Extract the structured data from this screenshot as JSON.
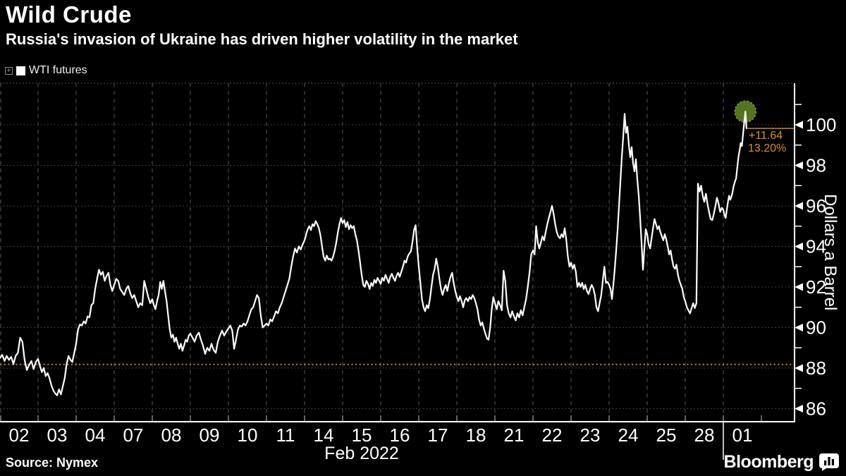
{
  "header": {
    "title": "Wild Crude",
    "subtitle": "Russia's invasion of Ukraine has driven higher volatility in the market"
  },
  "legend": {
    "expand_glyph": "+",
    "swatch_color": "#ffffff",
    "series_label": "WTI futures"
  },
  "footer": {
    "source": "Source: Nymex",
    "brand": "Bloomberg"
  },
  "colors": {
    "background": "#000000",
    "line": "#ffffff",
    "grid_dotted": "#4a4a4a",
    "grid_dashed": "#565656",
    "top_border": "#666666",
    "axis": "#ffffff",
    "tick": "#c9c9c9",
    "orange_reference": "#c28117",
    "orange_last_price": "#c9881c",
    "orange_text": "#d8911e",
    "marker_green": "#55741d",
    "marker_ring": "#7da32c"
  },
  "chart_data": {
    "type": "line",
    "title": "Wild Crude",
    "series_name": "WTI futures",
    "xlabel": "Feb 2022",
    "ylabel": "Dollars a Barrel",
    "x_tick_labels": [
      "02",
      "03",
      "04",
      "07",
      "08",
      "09",
      "10",
      "11",
      "14",
      "15",
      "16",
      "17",
      "18",
      "21",
      "22",
      "23",
      "24",
      "25",
      "28",
      "01"
    ],
    "y_ticks": [
      86,
      88,
      90,
      92,
      94,
      96,
      98,
      100
    ],
    "y_minor_ticks": [
      87,
      89,
      91,
      93,
      95,
      97,
      99,
      101
    ],
    "ylim": [
      85.35,
      102.05
    ],
    "grid": true,
    "legend_position": "top-left",
    "month_separator_after_label": "28",
    "last_day_fraction": 0.61,
    "reference_line": {
      "value": 88.18,
      "style": "dotted"
    },
    "last_point": {
      "value": 99.82,
      "change": "+11.64",
      "change_pct": "13.20%",
      "marker_value": 100.65
    },
    "days": [
      {
        "label": "02",
        "prices": [
          88.5,
          88.65,
          88.35,
          88.6,
          88.4,
          88.55,
          88.2,
          88.6,
          88.75,
          89.5,
          89.3,
          88.4,
          87.9,
          88.15,
          88.35,
          87.95,
          88.3
        ]
      },
      {
        "label": "03",
        "prices": [
          88.45,
          88.1,
          87.8,
          88.0,
          87.6,
          87.75,
          87.5,
          87.15,
          86.9,
          86.75,
          86.65,
          86.95,
          86.7,
          87.1,
          87.5,
          88.2,
          88.6,
          88.4,
          88.3,
          88.75
        ]
      },
      {
        "label": "04",
        "prices": [
          89.2,
          89.9,
          90.15,
          90.1,
          90.3,
          90.2,
          90.55,
          90.5,
          91.1,
          91.2,
          91.9,
          92.4,
          92.85,
          92.6,
          92.75,
          92.3,
          92.55,
          92.7,
          92.1,
          91.8
        ]
      },
      {
        "label": "07",
        "prices": [
          92.1,
          92.4,
          92.3,
          91.9,
          91.75,
          91.6,
          91.9,
          92.05,
          91.7,
          91.45,
          91.6,
          91.3,
          91.0,
          91.2,
          91.1,
          92.3,
          91.9,
          91.5,
          91.2
        ]
      },
      {
        "label": "08",
        "prices": [
          91.4,
          91.1,
          90.9,
          91.3,
          91.6,
          92.25,
          91.9,
          92.3,
          91.8,
          91.3,
          90.6,
          89.9,
          89.5,
          89.65,
          89.3,
          89.5,
          89.2,
          88.95,
          89.2,
          88.85,
          89.1,
          89.4,
          89.3,
          89.6
        ]
      },
      {
        "label": "09",
        "prices": [
          89.7,
          89.5,
          89.3,
          89.6,
          89.75,
          89.4,
          89.1,
          88.7,
          89.0,
          88.85,
          89.2,
          88.9,
          88.75,
          89.3,
          89.6,
          89.85,
          89.6,
          89.8
        ]
      },
      {
        "label": "10",
        "prices": [
          89.95,
          90.1,
          89.85,
          88.95,
          89.4,
          89.9,
          90.1,
          90.05,
          90.2,
          90.1,
          90.3,
          90.6,
          90.9,
          91.0,
          91.3,
          91.6,
          91.45,
          90.6,
          90.0,
          90.1
        ]
      },
      {
        "label": "11",
        "prices": [
          90.2,
          90.1,
          90.4,
          90.3,
          90.55,
          90.8,
          90.7,
          91.0,
          91.2,
          91.5,
          91.8,
          92.1,
          92.4,
          93.0,
          93.5,
          93.9,
          93.7,
          94.0,
          93.85,
          94.1
        ]
      },
      {
        "label": "14",
        "prices": [
          94.3,
          94.6,
          94.85,
          95.0,
          94.8,
          95.1,
          95.0,
          95.25,
          95.1,
          94.9,
          94.55,
          94.0,
          93.5,
          93.3,
          93.55,
          93.35,
          93.4,
          93.3,
          93.5,
          93.8,
          94.2,
          94.7,
          95.1,
          95.4
        ]
      },
      {
        "label": "15",
        "prices": [
          95.15,
          95.3,
          94.95,
          95.2,
          94.85,
          95.05,
          94.9,
          95.0,
          94.6,
          94.3,
          93.8,
          93.2,
          92.6,
          92.1,
          92.0,
          92.3,
          92.15,
          91.9,
          92.2,
          92.05,
          92.35,
          92.2,
          92.45,
          92.3
        ]
      },
      {
        "label": "16",
        "prices": [
          92.15,
          92.45,
          92.3,
          92.6,
          92.4,
          92.2,
          92.5,
          92.65,
          92.45,
          92.3,
          92.55,
          92.7,
          92.5,
          92.75,
          93.0,
          93.3,
          93.2,
          93.5,
          93.65,
          93.75,
          94.2,
          94.8,
          95.05,
          93.9
        ]
      },
      {
        "label": "17",
        "prices": [
          93.0,
          92.2,
          91.4,
          91.0,
          90.8,
          91.1,
          90.95,
          91.4,
          92.0,
          92.6,
          92.9,
          93.4,
          93.0,
          92.4,
          91.9,
          91.6,
          91.9,
          92.1,
          91.8,
          92.2,
          92.5,
          92.7,
          92.2,
          91.8
        ]
      },
      {
        "label": "18",
        "prices": [
          91.5,
          91.3,
          91.55,
          91.3,
          91.0,
          91.35,
          91.45,
          91.3,
          91.5,
          91.4,
          91.6,
          91.45,
          91.2,
          90.9,
          90.4,
          90.1,
          90.25,
          89.95,
          89.7,
          89.45,
          89.4,
          90.0,
          90.9,
          91.5
        ]
      },
      {
        "label": "21",
        "prices": [
          91.2,
          90.9,
          91.3,
          91.1,
          90.85,
          92.8,
          92.3,
          91.1,
          90.7,
          90.5,
          90.8,
          90.55,
          90.35,
          90.7,
          90.5,
          90.85,
          90.6,
          91.0,
          91.4,
          92.0,
          92.7,
          93.6
        ]
      },
      {
        "label": "22",
        "prices": [
          93.8,
          93.6,
          95.0,
          94.2,
          93.9,
          94.2,
          94.5,
          94.3,
          94.7,
          95.1,
          95.4,
          95.7,
          96.0,
          95.6,
          95.1,
          94.7,
          94.5,
          94.4,
          94.6,
          94.45,
          94.9,
          94.3,
          93.5,
          93.0
        ]
      },
      {
        "label": "23",
        "prices": [
          93.2,
          92.9,
          93.1,
          92.75,
          92.0,
          92.2,
          92.0,
          92.2,
          91.9,
          92.1,
          91.8,
          91.65,
          91.9,
          92.1,
          91.95,
          91.6,
          91.0,
          90.8,
          91.2,
          91.6,
          92.3,
          93.0,
          92.2,
          92.25
        ]
      },
      {
        "label": "24",
        "prices": [
          92.1,
          91.9,
          91.4,
          92.1,
          92.9,
          93.8,
          94.8,
          96.0,
          97.2,
          98.4,
          99.4,
          100.54,
          99.6,
          99.9,
          99.0,
          98.4,
          98.9,
          98.1,
          97.7,
          98.3,
          97.3,
          96.5,
          95.4,
          94.2,
          92.85,
          93.9,
          94.85
        ]
      },
      {
        "label": "25",
        "prices": [
          94.6,
          94.1,
          93.9,
          94.4,
          94.9,
          95.35,
          95.1,
          94.85,
          95.0,
          94.7,
          94.5,
          94.3,
          94.6,
          94.35,
          94.0,
          93.6,
          93.8,
          93.35,
          93.0,
          92.9,
          93.1,
          92.6,
          92.3,
          92.1,
          91.9,
          91.5
        ]
      },
      {
        "label": "28",
        "prices": [
          91.3,
          91.0,
          90.85,
          90.7,
          90.95,
          91.2,
          90.95,
          91.2,
          97.1,
          96.7,
          97.0,
          96.5,
          96.2,
          96.6,
          96.1,
          95.7,
          95.35,
          95.3,
          95.6,
          96.0,
          96.4,
          96.1,
          95.7,
          95.9
        ]
      },
      {
        "label": "01",
        "prices": [
          95.8,
          95.55,
          95.4,
          95.8,
          96.2,
          96.5,
          96.3,
          96.45,
          96.7,
          97.0,
          97.2,
          97.35,
          97.9,
          98.4,
          98.75,
          99.1,
          98.95,
          99.55,
          100.1,
          100.65,
          99.82
        ]
      }
    ]
  }
}
